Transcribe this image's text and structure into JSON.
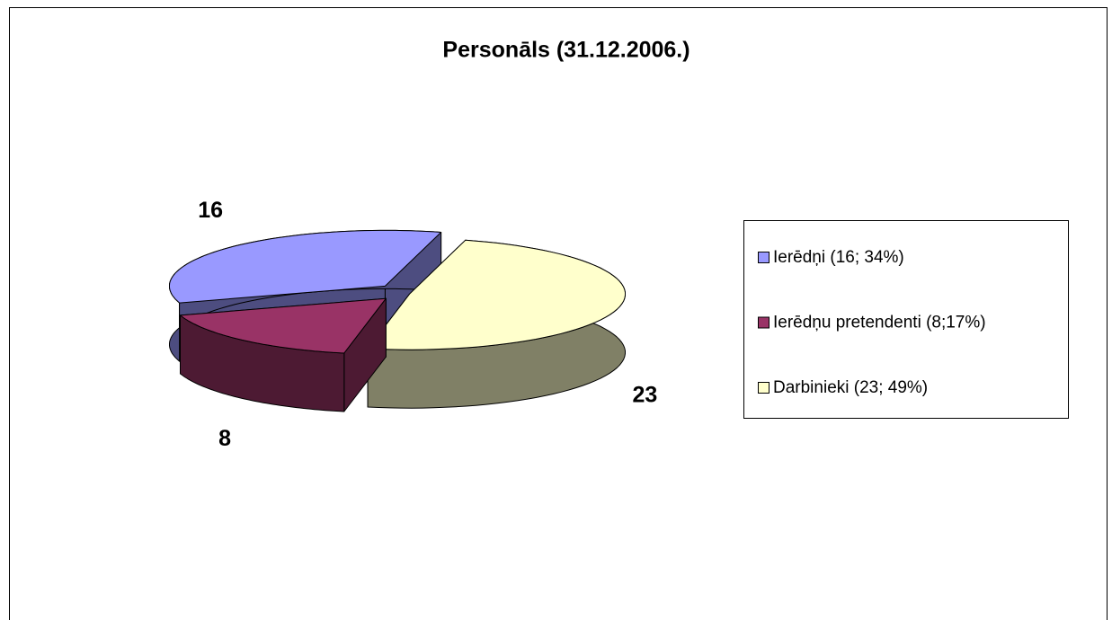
{
  "chart_data": {
    "type": "pie",
    "title": "Personāls (31.12.2006.)",
    "categories": [
      "Ierēdņi (16; 34%)",
      "Ierēdņu pretendenti (8;17%)",
      "Darbinieki (23; 49%)"
    ],
    "values": [
      16,
      8,
      23
    ],
    "colors": [
      "#9999ff",
      "#993366",
      "#ffffcc"
    ],
    "legend": "right"
  }
}
